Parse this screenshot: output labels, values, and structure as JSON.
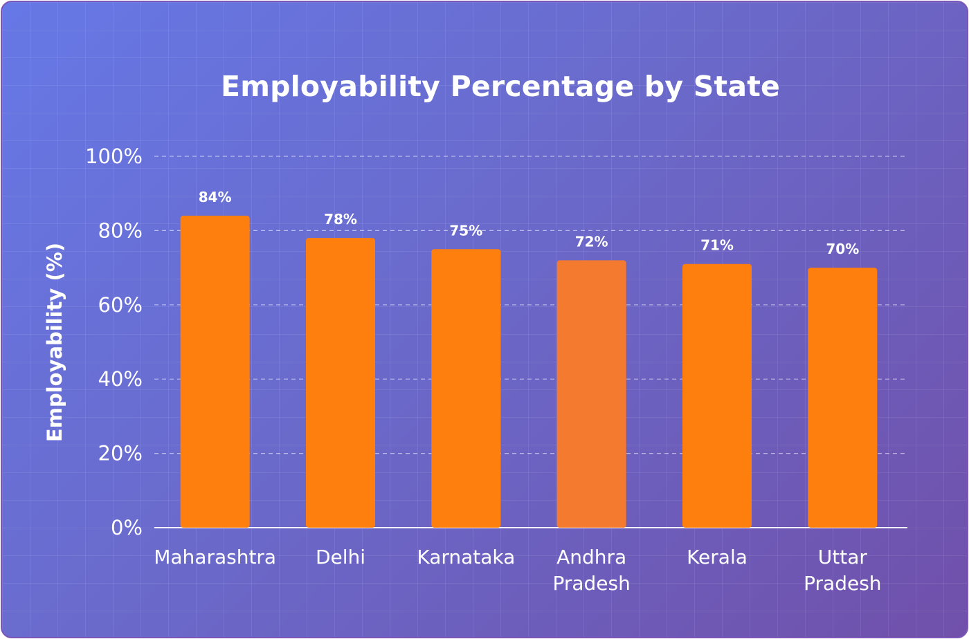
{
  "chart_data": {
    "type": "bar",
    "title": "Employability Percentage by State",
    "xlabel": "",
    "ylabel": "Employability (%)",
    "ylim": [
      0,
      100
    ],
    "yticks": [
      0,
      20,
      40,
      60,
      80,
      100
    ],
    "ytick_labels": [
      "0%",
      "20%",
      "40%",
      "60%",
      "80%",
      "100%"
    ],
    "grid": true,
    "categories": [
      [
        "Maharashtra"
      ],
      [
        "Delhi"
      ],
      [
        "Karnataka"
      ],
      [
        "Andhra",
        "Pradesh"
      ],
      [
        "Kerala"
      ],
      [
        "Uttar",
        "Pradesh"
      ]
    ],
    "values": [
      84,
      78,
      75,
      72,
      71,
      70
    ],
    "value_labels": [
      "84%",
      "78%",
      "75%",
      "72%",
      "71%",
      "70%"
    ],
    "bar_colors": [
      "#ff7f0e",
      "#ff7f0e",
      "#ff7f0e",
      "#f47a2f",
      "#ff7f0e",
      "#ff7f0e"
    ]
  }
}
